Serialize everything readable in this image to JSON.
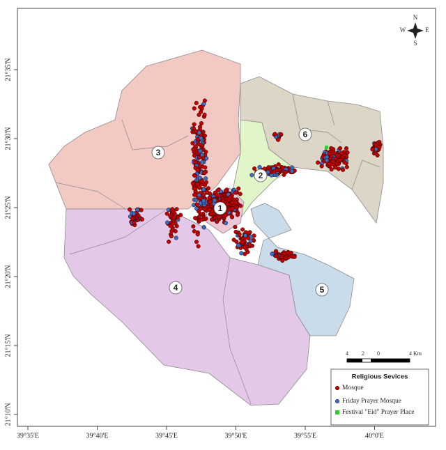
{
  "map": {
    "zone_labels": [
      "1",
      "2",
      "3",
      "4",
      "5",
      "6"
    ],
    "latitude_labels": [
      "21°35'N",
      "21°30'N",
      "21°25'N",
      "21°20'N",
      "21°15'N",
      "21°10'N"
    ],
    "longitude_labels": [
      "39°35'E",
      "39°40'E",
      "39°45'E",
      "39°50'E",
      "39°55'E",
      "40°0'E"
    ],
    "compass": {
      "n": "N",
      "s": "S",
      "e": "E",
      "w": "W"
    },
    "scale_bar": {
      "labels": [
        "4",
        "2",
        "0",
        "4 Km"
      ]
    },
    "legend": {
      "title": "Religious Sevices",
      "items": [
        "Mosque",
        "Friday Prayer Mosque",
        "Festival \"Eid\" Prayer Place"
      ]
    }
  }
}
